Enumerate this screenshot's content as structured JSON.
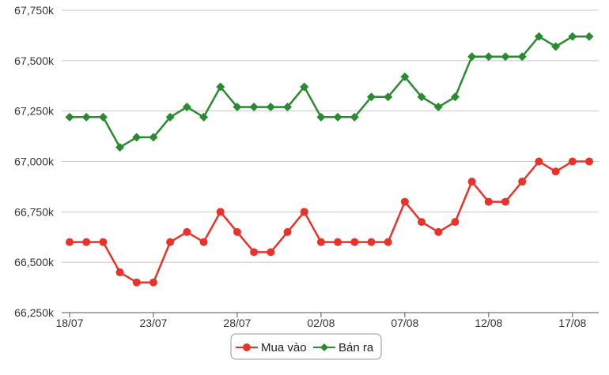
{
  "chart_data": {
    "type": "line",
    "y_ticks": [
      "66,250k",
      "66,500k",
      "66,750k",
      "67,000k",
      "67,250k",
      "67,500k",
      "67,750k"
    ],
    "y_tick_values": [
      66250,
      66500,
      66750,
      67000,
      67250,
      67500,
      67750
    ],
    "ylim": [
      66250,
      67750
    ],
    "x_ticks": [
      "18/07",
      "23/07",
      "28/07",
      "02/08",
      "07/08",
      "12/08",
      "17/08"
    ],
    "x_tick_index": [
      0,
      5,
      10,
      15,
      20,
      25,
      30
    ],
    "point_count": 32,
    "grid": true,
    "legend_position": "bottom-center",
    "series": [
      {
        "name": "Mua vào",
        "color": "#e8332b",
        "marker": "circle",
        "values": [
          66600,
          66600,
          66600,
          66450,
          66400,
          66400,
          66600,
          66650,
          66600,
          66750,
          66650,
          66550,
          66550,
          66650,
          66750,
          66600,
          66600,
          66600,
          66600,
          66600,
          66800,
          66700,
          66650,
          66700,
          66900,
          66800,
          66800,
          66900,
          67000,
          66950,
          67000,
          67000
        ]
      },
      {
        "name": "Bán ra",
        "color": "#2a8a2f",
        "marker": "diamond",
        "values": [
          67220,
          67220,
          67220,
          67070,
          67120,
          67120,
          67220,
          67270,
          67220,
          67370,
          67270,
          67270,
          67270,
          67270,
          67370,
          67220,
          67220,
          67220,
          67320,
          67320,
          67420,
          67320,
          67270,
          67320,
          67520,
          67520,
          67520,
          67520,
          67620,
          67570,
          67620,
          67620
        ]
      }
    ]
  }
}
